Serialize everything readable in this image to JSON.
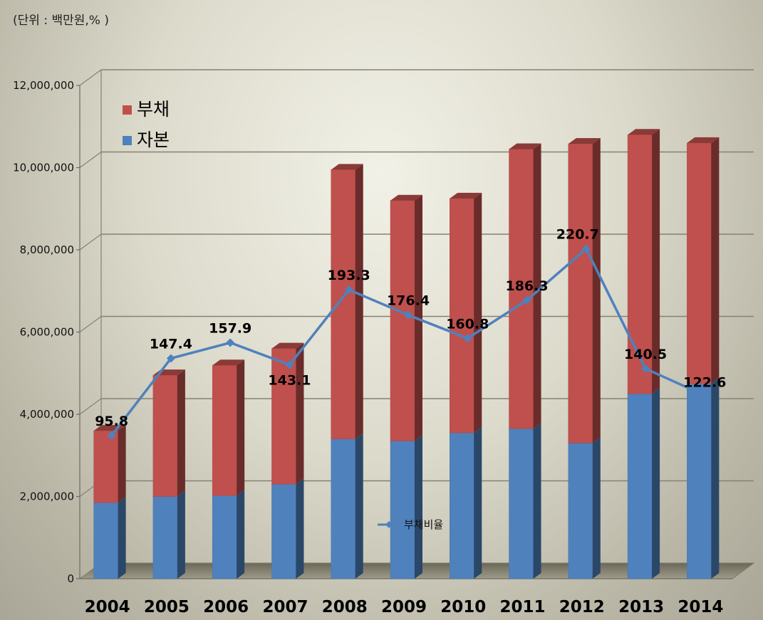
{
  "chart_data": {
    "type": "bar",
    "subtitle": "(단위 : 백만원,% )",
    "categories": [
      "2004",
      "2005",
      "2006",
      "2007",
      "2008",
      "2009",
      "2010",
      "2011",
      "2012",
      "2013",
      "2014"
    ],
    "series": [
      {
        "name": "자본",
        "type": "bar",
        "stack": "total",
        "color": "#4f81bd",
        "values": [
          1850000,
          2000000,
          2020000,
          2300000,
          3400000,
          3350000,
          3550000,
          3650000,
          3300000,
          4500000,
          4750000
        ]
      },
      {
        "name": "부채",
        "type": "bar",
        "stack": "total",
        "color": "#c0504d",
        "values": [
          1750000,
          2950000,
          3170000,
          3300000,
          6550000,
          5850000,
          5700000,
          6800000,
          7280000,
          6300000,
          5850000
        ]
      },
      {
        "name": "부채비율",
        "type": "line",
        "color": "#4f81bd",
        "values": [
          95.8,
          147.4,
          157.9,
          143.1,
          193.3,
          176.4,
          160.8,
          186.3,
          220.7,
          140.5,
          122.6
        ],
        "labels": [
          "95.8",
          "147.4",
          "157.9",
          "143.1",
          "193.3",
          "176.4",
          "160.8",
          "186.3",
          "220.7",
          "140.5",
          "122.6"
        ]
      }
    ],
    "yticks": [
      "0",
      "2,000,000",
      "4,000,000",
      "6,000,000",
      "8,000,000",
      "10,000,000",
      "12,000,000"
    ],
    "ylim": [
      0,
      12000000
    ],
    "ylim_line": [
      0,
      330
    ],
    "grid": true,
    "legend_position": "top-left",
    "legend_line_position": "bottom-center"
  }
}
